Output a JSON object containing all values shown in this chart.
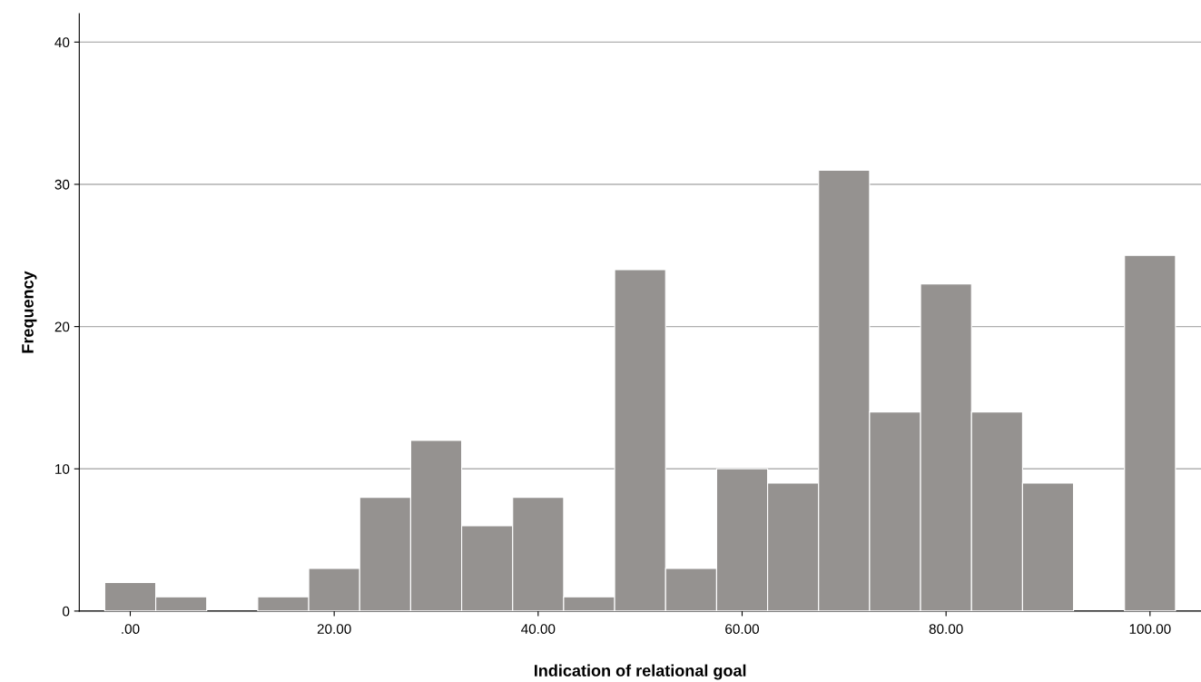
{
  "chart_data": {
    "type": "histogram",
    "xlabel": "Indication of relational goal",
    "ylabel": "Frequency",
    "bins": [
      -2.5,
      2.5,
      7.5,
      12.5,
      17.5,
      22.5,
      27.5,
      32.5,
      37.5,
      42.5,
      47.5,
      52.5,
      57.5,
      62.5,
      67.5,
      72.5,
      77.5,
      82.5,
      87.5,
      92.5,
      97.5,
      102.5
    ],
    "values": [
      2,
      1,
      0,
      1,
      3,
      8,
      12,
      6,
      8,
      1,
      24,
      3,
      10,
      9,
      31,
      14,
      23,
      14,
      9,
      0,
      25
    ],
    "color": "#959290",
    "xlim": [
      -5,
      105
    ],
    "xticks": [
      {
        "value": 0,
        "label": ".00"
      },
      {
        "value": 20,
        "label": "20.00"
      },
      {
        "value": 40,
        "label": "40.00"
      },
      {
        "value": 60,
        "label": "60.00"
      },
      {
        "value": 80,
        "label": "80.00"
      },
      {
        "value": 100,
        "label": "100.00"
      }
    ],
    "ylim": [
      0,
      42
    ],
    "yticks": [
      0,
      10,
      20,
      30,
      40
    ],
    "grid": "y",
    "legend": false
  }
}
